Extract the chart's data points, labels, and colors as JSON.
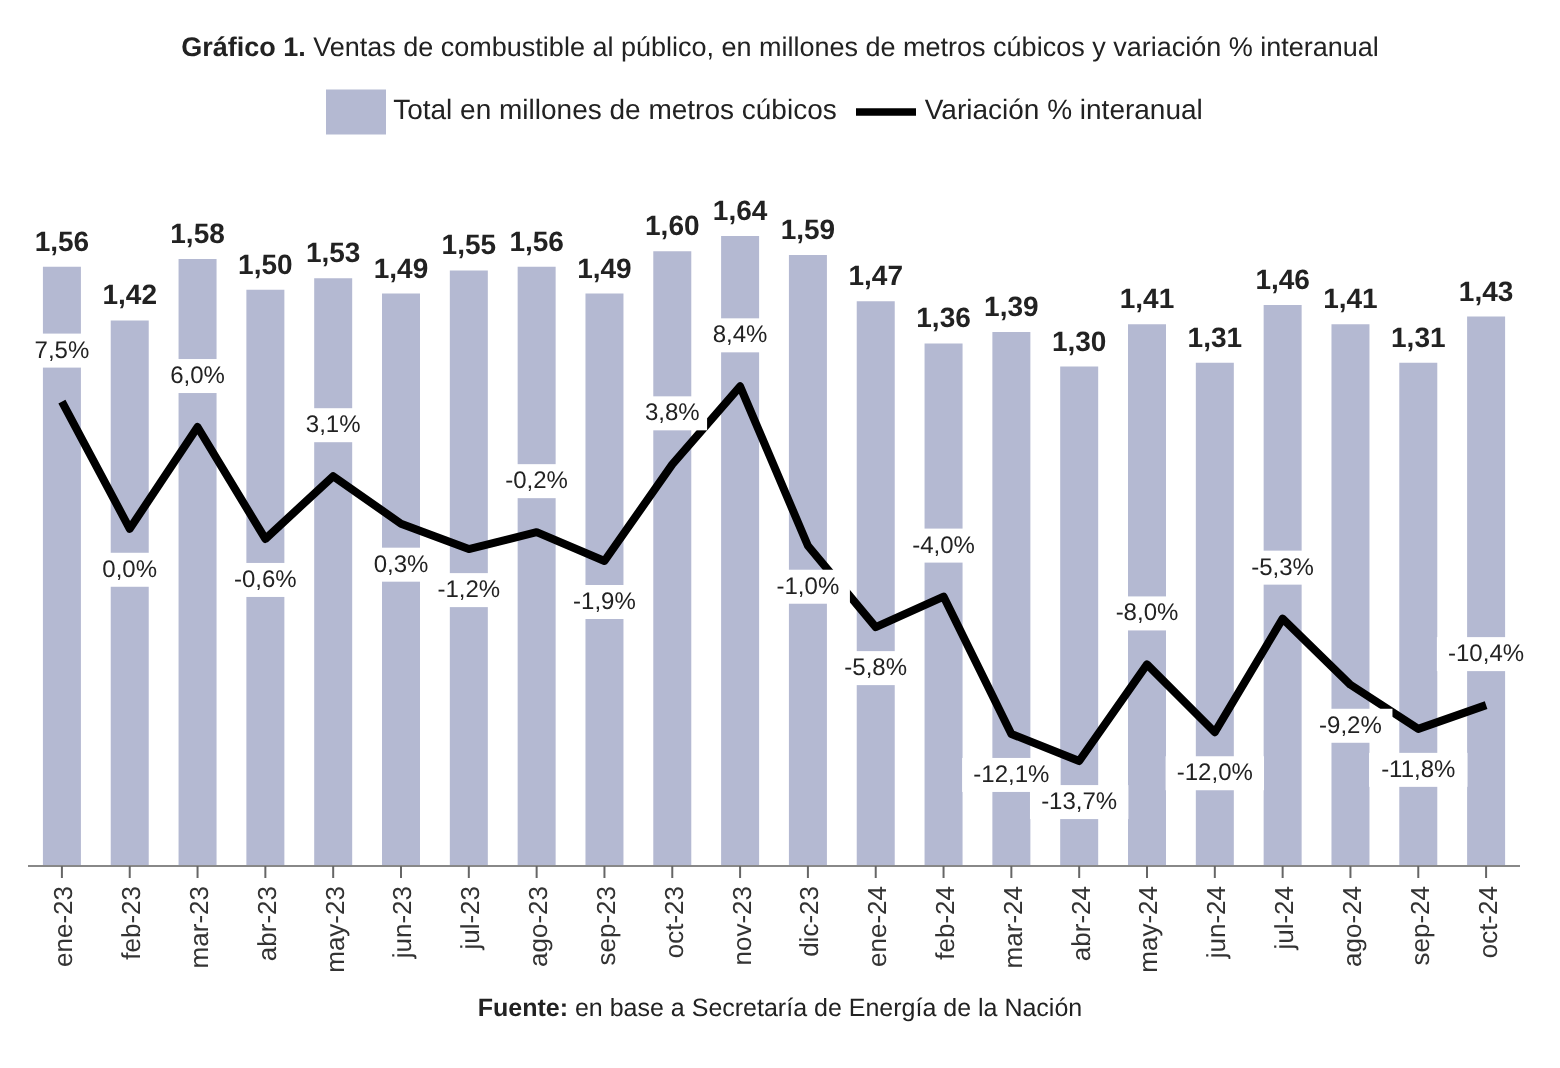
{
  "chart_data": {
    "type": "bar",
    "title": "Gráfico 1. Ventas de combustible al público, en millones de metros cúbicos y variación % interanual",
    "categories": [
      "ene-23",
      "feb-23",
      "mar-23",
      "abr-23",
      "may-23",
      "jun-23",
      "jul-23",
      "ago-23",
      "sep-23",
      "oct-23",
      "nov-23",
      "dic-23",
      "ene-24",
      "feb-24",
      "mar-24",
      "abr-24",
      "may-24",
      "jun-24",
      "jul-24",
      "ago-24",
      "sep-24",
      "oct-24"
    ],
    "series": [
      {
        "name": "Total en millones de metros cúbicos",
        "color": "#b4b9d2",
        "values": [
          1.56,
          1.42,
          1.58,
          1.5,
          1.53,
          1.49,
          1.55,
          1.56,
          1.49,
          1.6,
          1.64,
          1.59,
          1.47,
          1.36,
          1.39,
          1.3,
          1.41,
          1.31,
          1.46,
          1.41,
          1.31,
          1.43
        ],
        "value_labels": [
          "1,56",
          "1,42",
          "1,58",
          "1,50",
          "1,53",
          "1,49",
          "1,55",
          "1,56",
          "1,49",
          "1,60",
          "1,64",
          "1,59",
          "1,47",
          "1,36",
          "1,39",
          "1,30",
          "1,41",
          "1,31",
          "1,46",
          "1,41",
          "1,31",
          "1,43"
        ]
      },
      {
        "name": "Variación % interanual",
        "type": "line",
        "axis": "y2",
        "color": "#000000",
        "values": [
          7.5,
          0.0,
          6.0,
          -0.6,
          3.1,
          0.3,
          -1.2,
          -0.2,
          -1.9,
          3.8,
          8.4,
          -1.0,
          -5.8,
          -4.0,
          -12.1,
          -13.7,
          -8.0,
          -12.0,
          -5.3,
          -9.2,
          -11.8,
          -10.4
        ],
        "value_labels": [
          "7,5%",
          "0,0%",
          "6,0%",
          "-0,6%",
          "3,1%",
          "0,3%",
          "-1,2%",
          "-0,2%",
          "-1,9%",
          "3,8%",
          "8,4%",
          "-1,0%",
          "-5,8%",
          "-4,0%",
          "-12,1%",
          "-13,7%",
          "-8,0%",
          "-12,0%",
          "-5,3%",
          "-9,2%",
          "-11,8%",
          "-10,4%"
        ]
      }
    ],
    "legend": "top",
    "grid": false,
    "marker": "none",
    "tick_labels": "x",
    "annotations": [
      "Fuente: en base a Secretaría de Energía de la Nación"
    ]
  }
}
